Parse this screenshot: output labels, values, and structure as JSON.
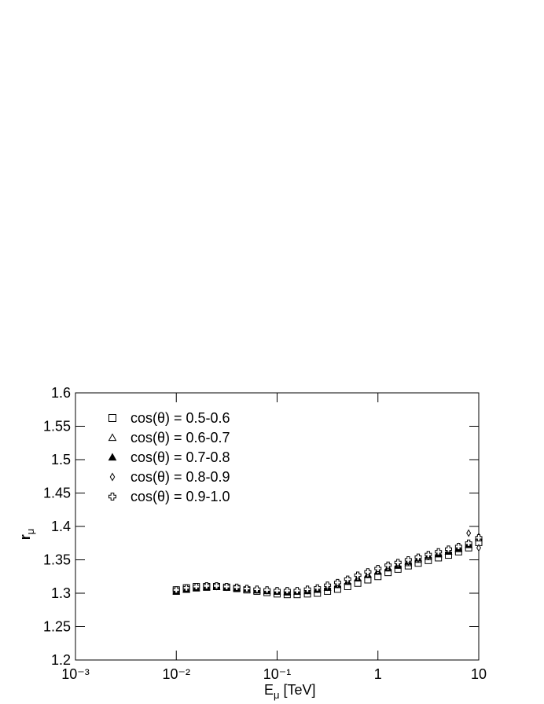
{
  "chart_data": {
    "type": "scatter",
    "x_label": {
      "main": "E",
      "sub": "μ",
      "unit": "[TeV]"
    },
    "y_label": {
      "main": "r",
      "sub": "μ"
    },
    "x_log": true,
    "xlim": [
      0.001,
      10
    ],
    "xticks": [
      {
        "value": 0.001,
        "label": "10⁻³"
      },
      {
        "value": 0.01,
        "label": "10⁻²"
      },
      {
        "value": 0.1,
        "label": "10⁻¹"
      },
      1,
      10
    ],
    "ylim": [
      1.2,
      1.6
    ],
    "yticks": [
      1.2,
      1.25,
      1.3,
      1.35,
      1.4,
      1.45,
      1.5,
      1.55,
      1.6
    ],
    "legend": "upper-left",
    "x": [
      0.01,
      0.0126,
      0.0158,
      0.02,
      0.0251,
      0.0316,
      0.0398,
      0.0501,
      0.0631,
      0.0794,
      0.1,
      0.126,
      0.158,
      0.2,
      0.251,
      0.316,
      0.398,
      0.501,
      0.631,
      0.794,
      1,
      1.26,
      1.58,
      2,
      2.51,
      3.16,
      3.98,
      5.01,
      6.31,
      7.94,
      10
    ],
    "series": [
      {
        "name": "cos(θ) = 0.5-0.6",
        "marker": "square-open",
        "color": "#000000",
        "values": [
          1.305,
          1.308,
          1.31,
          1.31,
          1.31,
          1.309,
          1.307,
          1.305,
          1.303,
          1.301,
          1.299,
          1.298,
          1.298,
          1.299,
          1.3,
          1.303,
          1.306,
          1.31,
          1.315,
          1.32,
          1.325,
          1.331,
          1.336,
          1.341,
          1.345,
          1.349,
          1.353,
          1.357,
          1.362,
          1.368,
          1.376
        ]
      },
      {
        "name": "cos(θ) = 0.6-0.7",
        "marker": "triangle-open",
        "color": "#000000",
        "values": [
          1.303,
          1.306,
          1.308,
          1.309,
          1.31,
          1.309,
          1.308,
          1.306,
          1.305,
          1.304,
          1.303,
          1.302,
          1.302,
          1.303,
          1.305,
          1.308,
          1.312,
          1.317,
          1.322,
          1.327,
          1.332,
          1.337,
          1.341,
          1.345,
          1.35,
          1.354,
          1.358,
          1.362,
          1.367,
          1.373,
          1.382
        ]
      },
      {
        "name": "cos(θ) = 0.7-0.8",
        "marker": "triangle-filled",
        "color": "#000000",
        "values": [
          1.302,
          1.305,
          1.307,
          1.308,
          1.309,
          1.308,
          1.307,
          1.306,
          1.304,
          1.303,
          1.302,
          1.301,
          1.302,
          1.303,
          1.305,
          1.308,
          1.312,
          1.317,
          1.322,
          1.328,
          1.333,
          1.338,
          1.342,
          1.347,
          1.352,
          1.356,
          1.359,
          1.362,
          1.366,
          1.372,
          1.385
        ]
      },
      {
        "name": "cos(θ) = 0.8-0.9",
        "marker": "diamond-open",
        "color": "#000000",
        "values": [
          1.304,
          1.307,
          1.309,
          1.31,
          1.31,
          1.309,
          1.308,
          1.307,
          1.305,
          1.304,
          1.303,
          1.303,
          1.303,
          1.304,
          1.306,
          1.309,
          1.313,
          1.318,
          1.323,
          1.328,
          1.333,
          1.338,
          1.343,
          1.347,
          1.351,
          1.355,
          1.36,
          1.364,
          1.37,
          1.39,
          1.368
        ]
      },
      {
        "name": "cos(θ) = 0.9-1.0",
        "marker": "cross-open",
        "color": "#000000",
        "values": [
          1.305,
          1.308,
          1.31,
          1.311,
          1.311,
          1.31,
          1.309,
          1.307,
          1.306,
          1.305,
          1.304,
          1.304,
          1.304,
          1.306,
          1.308,
          1.312,
          1.316,
          1.321,
          1.327,
          1.332,
          1.337,
          1.342,
          1.346,
          1.35,
          1.354,
          1.358,
          1.362,
          1.366,
          1.37,
          1.375,
          1.383
        ]
      }
    ]
  }
}
